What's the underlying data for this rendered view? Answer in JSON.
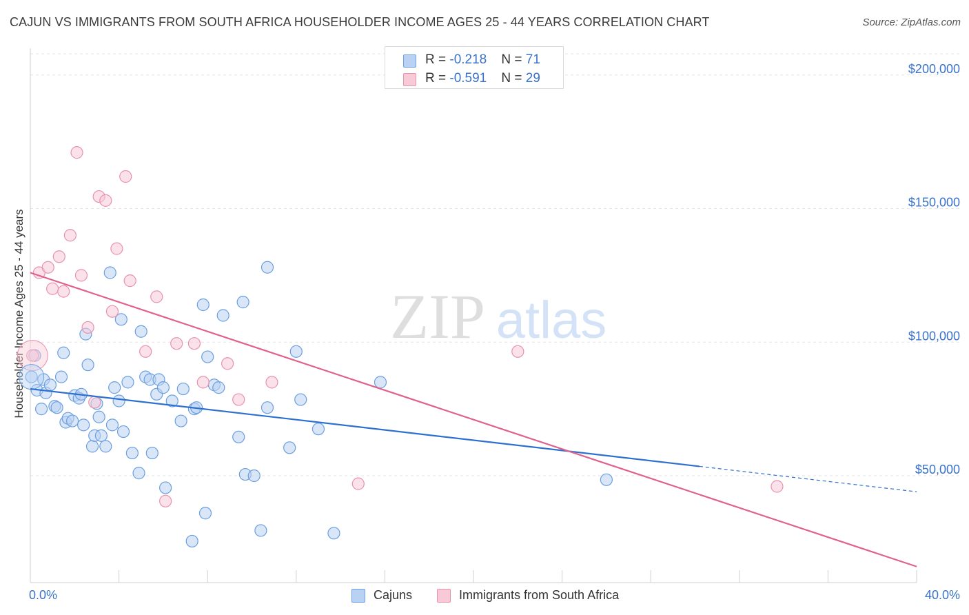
{
  "chart_data": {
    "type": "scatter",
    "title": "CAJUN VS IMMIGRANTS FROM SOUTH AFRICA HOUSEHOLDER INCOME AGES 25 - 44 YEARS CORRELATION CHART",
    "source": "Source: ZipAtlas.com",
    "ylabel": "Householder Income Ages 25 - 44 years",
    "xlabel": "",
    "x_tick_labels": {
      "min": "0.0%",
      "max": "40.0%"
    },
    "xlim": [
      0,
      40
    ],
    "ylim": [
      10000,
      210000
    ],
    "y_ticks": [
      {
        "value": 50000,
        "label": "$50,000"
      },
      {
        "value": 100000,
        "label": "$100,000"
      },
      {
        "value": 150000,
        "label": "$150,000"
      },
      {
        "value": 200000,
        "label": "$200,000"
      }
    ],
    "grid": true,
    "legend_position": "bottom-center",
    "watermark": {
      "zip": "ZIP",
      "atlas": "atlas"
    },
    "stats": [
      {
        "r_label": "R = ",
        "r_value": "-0.218",
        "n_label": "N = ",
        "n_value": "71"
      },
      {
        "r_label": "R = ",
        "r_value": "-0.591",
        "n_label": "N = ",
        "n_value": "29"
      }
    ],
    "series": [
      {
        "name": "Cajuns",
        "color": "#6a9fe0",
        "fill": "#b9d2f3",
        "line_color": "#2d6fcf",
        "trend": {
          "x1": 0,
          "y1": 82500,
          "x2": 30.2,
          "y2": 53500,
          "dash_to_x": 40,
          "dash_to_y": 44000
        },
        "points": [
          [
            0.2,
            95000
          ],
          [
            0.3,
            82000
          ],
          [
            0.6,
            86000
          ],
          [
            0.5,
            75000
          ],
          [
            0.7,
            81000
          ],
          [
            0.9,
            84000
          ],
          [
            1.1,
            76000
          ],
          [
            1.2,
            75500
          ],
          [
            1.4,
            87000
          ],
          [
            1.5,
            96000
          ],
          [
            1.6,
            70000
          ],
          [
            1.7,
            71500
          ],
          [
            1.9,
            70500
          ],
          [
            2.0,
            80000
          ],
          [
            2.2,
            79000
          ],
          [
            2.3,
            80500
          ],
          [
            2.4,
            69000
          ],
          [
            2.5,
            103000
          ],
          [
            2.6,
            91500
          ],
          [
            2.8,
            61000
          ],
          [
            2.9,
            65000
          ],
          [
            3.0,
            77000
          ],
          [
            3.1,
            72000
          ],
          [
            3.2,
            65000
          ],
          [
            3.4,
            61000
          ],
          [
            3.6,
            126000
          ],
          [
            3.7,
            69000
          ],
          [
            3.8,
            83000
          ],
          [
            4.0,
            78000
          ],
          [
            4.1,
            108500
          ],
          [
            4.2,
            66500
          ],
          [
            4.4,
            85000
          ],
          [
            4.6,
            58500
          ],
          [
            4.9,
            51000
          ],
          [
            5.0,
            104000
          ],
          [
            5.2,
            87000
          ],
          [
            5.4,
            86000
          ],
          [
            5.5,
            58500
          ],
          [
            5.7,
            80500
          ],
          [
            5.8,
            86000
          ],
          [
            6.0,
            83000
          ],
          [
            6.1,
            45500
          ],
          [
            6.4,
            78000
          ],
          [
            6.8,
            70500
          ],
          [
            6.9,
            82500
          ],
          [
            7.3,
            25500
          ],
          [
            7.4,
            75000
          ],
          [
            7.5,
            75500
          ],
          [
            7.8,
            114000
          ],
          [
            7.9,
            36000
          ],
          [
            8.0,
            94500
          ],
          [
            8.3,
            84000
          ],
          [
            8.5,
            83000
          ],
          [
            8.7,
            110000
          ],
          [
            9.4,
            64500
          ],
          [
            9.6,
            115000
          ],
          [
            9.7,
            50500
          ],
          [
            10.1,
            50000
          ],
          [
            10.4,
            29500
          ],
          [
            10.7,
            128000
          ],
          [
            10.7,
            75500
          ],
          [
            11.7,
            60500
          ],
          [
            12.0,
            96500
          ],
          [
            12.2,
            78500
          ],
          [
            13.0,
            67500
          ],
          [
            13.7,
            28500
          ],
          [
            15.8,
            85000
          ],
          [
            26.0,
            48500
          ],
          [
            0.05,
            87000
          ]
        ]
      },
      {
        "name": "Immigrants from South Africa",
        "color": "#e892ad",
        "fill": "#f8cad8",
        "line_color": "#e0618d",
        "trend": {
          "x1": 0,
          "y1": 126000,
          "x2": 40,
          "y2": 16000
        },
        "points": [
          [
            0.1,
            95000
          ],
          [
            0.4,
            126000
          ],
          [
            0.8,
            128000
          ],
          [
            1.0,
            120000
          ],
          [
            1.3,
            132000
          ],
          [
            1.5,
            119000
          ],
          [
            1.8,
            140000
          ],
          [
            2.1,
            171000
          ],
          [
            2.3,
            125000
          ],
          [
            2.6,
            105500
          ],
          [
            2.9,
            77500
          ],
          [
            3.1,
            154500
          ],
          [
            3.4,
            153000
          ],
          [
            3.7,
            111500
          ],
          [
            3.9,
            135000
          ],
          [
            4.3,
            162000
          ],
          [
            4.5,
            123000
          ],
          [
            5.2,
            96500
          ],
          [
            5.7,
            117000
          ],
          [
            6.1,
            40500
          ],
          [
            6.6,
            99500
          ],
          [
            7.4,
            99500
          ],
          [
            7.8,
            85000
          ],
          [
            8.9,
            92000
          ],
          [
            9.4,
            78500
          ],
          [
            10.9,
            85000
          ],
          [
            14.8,
            47000
          ],
          [
            22.0,
            96500
          ],
          [
            33.7,
            46000
          ]
        ]
      }
    ]
  }
}
